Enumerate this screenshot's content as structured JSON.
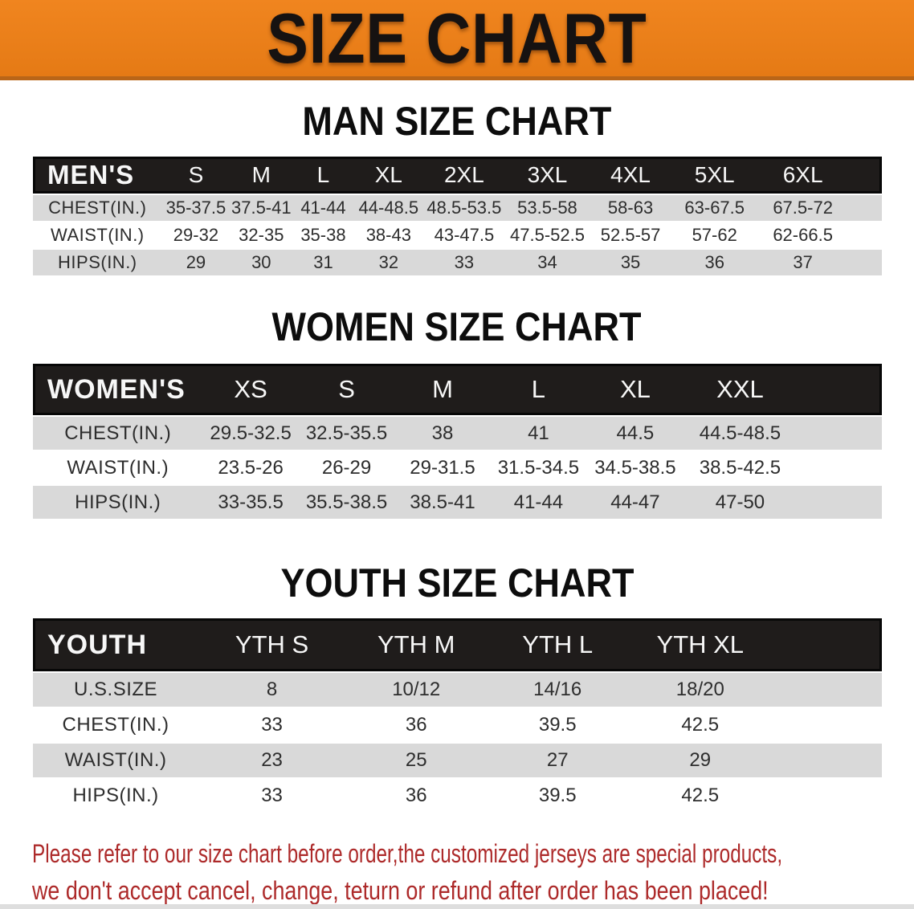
{
  "banner": {
    "title": "SIZE CHART"
  },
  "sections": [
    {
      "heading": "MAN SIZE CHART",
      "table": {
        "label": "MEN'S",
        "columns": [
          "S",
          "M",
          "L",
          "XL",
          "2XL",
          "3XL",
          "4XL",
          "5XL",
          "6XL"
        ],
        "rows": [
          {
            "label": "CHEST(IN.)",
            "values": [
              "35-37.5",
              "37.5-41",
              "41-44",
              "44-48.5",
              "48.5-53.5",
              "53.5-58",
              "58-63",
              "63-67.5",
              "67.5-72"
            ]
          },
          {
            "label": "WAIST(IN.)",
            "values": [
              "29-32",
              "32-35",
              "35-38",
              "38-43",
              "43-47.5",
              "47.5-52.5",
              "52.5-57",
              "57-62",
              "62-66.5"
            ]
          },
          {
            "label": "HIPS(IN.)",
            "values": [
              "29",
              "30",
              "31",
              "32",
              "33",
              "34",
              "35",
              "36",
              "37"
            ]
          }
        ]
      }
    },
    {
      "heading": "WOMEN SIZE CHART",
      "table": {
        "label": "WOMEN'S",
        "columns": [
          "XS",
          "S",
          "M",
          "L",
          "XL",
          "XXL"
        ],
        "rows": [
          {
            "label": "CHEST(IN.)",
            "values": [
              "29.5-32.5",
              "32.5-35.5",
              "38",
              "41",
              "44.5",
              "44.5-48.5"
            ]
          },
          {
            "label": "WAIST(IN.)",
            "values": [
              "23.5-26",
              "26-29",
              "29-31.5",
              "31.5-34.5",
              "34.5-38.5",
              "38.5-42.5"
            ]
          },
          {
            "label": "HIPS(IN.)",
            "values": [
              "33-35.5",
              "35.5-38.5",
              "38.5-41",
              "41-44",
              "44-47",
              "47-50"
            ]
          }
        ]
      }
    },
    {
      "heading": "YOUTH SIZE CHART",
      "table": {
        "label": "YOUTH",
        "columns": [
          "YTH S",
          "YTH M",
          "YTH L",
          "YTH XL"
        ],
        "rows": [
          {
            "label": "U.S.SIZE",
            "values": [
              "8",
              "10/12",
              "14/16",
              "18/20"
            ]
          },
          {
            "label": "CHEST(IN.)",
            "values": [
              "33",
              "36",
              "39.5",
              "42.5"
            ]
          },
          {
            "label": "WAIST(IN.)",
            "values": [
              "23",
              "25",
              "27",
              "29"
            ]
          },
          {
            "label": "HIPS(IN.)",
            "values": [
              "33",
              "36",
              "39.5",
              "42.5"
            ]
          }
        ]
      }
    }
  ],
  "disclaimer": {
    "line1": "Please refer to our size chart before order,the customized jerseys are special products,",
    "line2": "we don't accept cancel, change, teturn or refund after order has been placed!"
  },
  "colors": {
    "banner_bg": "#e8801a",
    "header_bar": "#1f1c1b",
    "row_gray": "#d9d9d9",
    "disclaimer_red": "#ad2a2a"
  }
}
